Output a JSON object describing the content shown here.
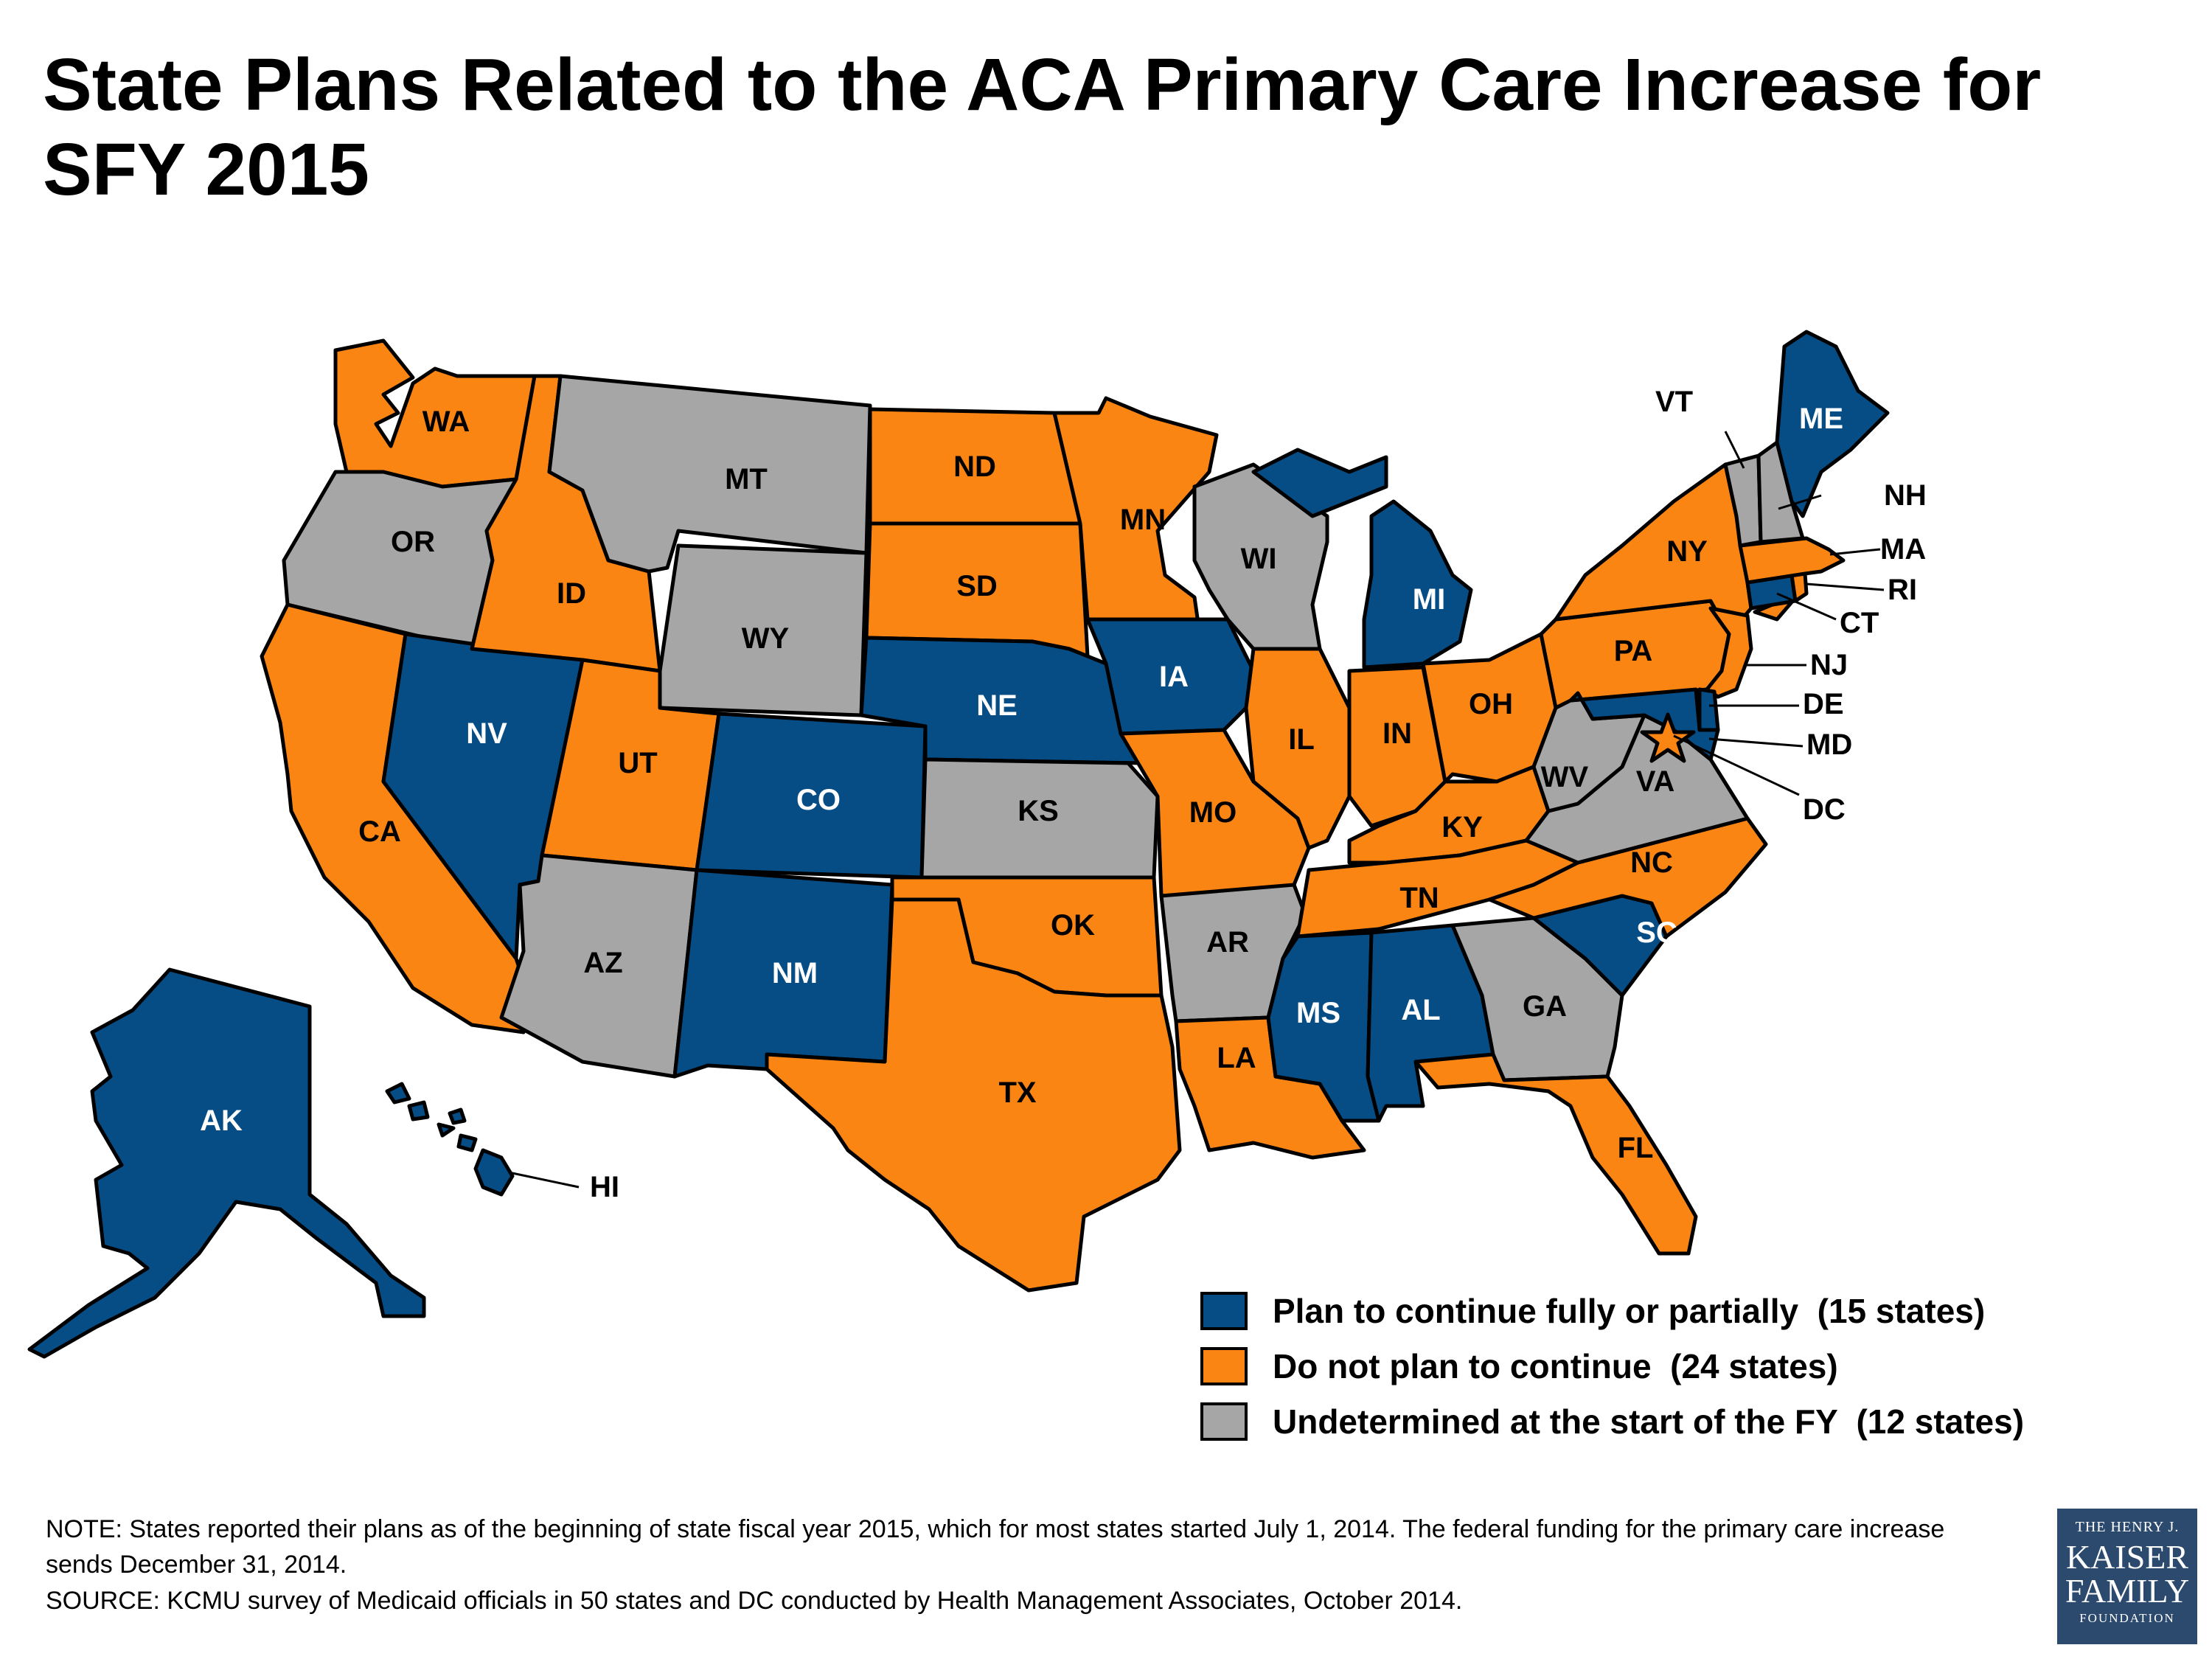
{
  "title": "State Plans Related to the ACA Primary Care Increase for SFY 2015",
  "colors": {
    "continue": "#064d86",
    "not_continue": "#fb8512",
    "undetermined": "#a6a6a6"
  },
  "categories": {
    "continue": "Plan to continue fully or partially  (15 states)",
    "not_continue": "Do not plan to continue  (24 states)",
    "undetermined": "Undetermined at the start of the FY  (12 states)"
  },
  "states": {
    "AL": "continue",
    "AK": "continue",
    "AZ": "undetermined",
    "AR": "undetermined",
    "CA": "not_continue",
    "CO": "continue",
    "CT": "continue",
    "DE": "continue",
    "DC": "not_continue",
    "FL": "not_continue",
    "GA": "undetermined",
    "HI": "continue",
    "ID": "not_continue",
    "IL": "not_continue",
    "IN": "not_continue",
    "IA": "continue",
    "KS": "undetermined",
    "KY": "not_continue",
    "LA": "not_continue",
    "ME": "continue",
    "MD": "continue",
    "MA": "not_continue",
    "MI": "continue",
    "MN": "not_continue",
    "MS": "continue",
    "MO": "not_continue",
    "MT": "undetermined",
    "NE": "continue",
    "NV": "continue",
    "NH": "undetermined",
    "NJ": "not_continue",
    "NM": "continue",
    "NY": "not_continue",
    "NC": "not_continue",
    "ND": "not_continue",
    "OH": "not_continue",
    "OK": "not_continue",
    "OR": "undetermined",
    "PA": "not_continue",
    "RI": "not_continue",
    "SC": "continue",
    "SD": "not_continue",
    "TN": "not_continue",
    "TX": "not_continue",
    "UT": "not_continue",
    "VT": "undetermined",
    "VA": "undetermined",
    "WA": "not_continue",
    "WV": "undetermined",
    "WI": "undetermined",
    "WY": "undetermined"
  },
  "note": "NOTE: States reported their plans as of the beginning of state fiscal year 2015, which for most states started July 1, 2014. The federal funding for the primary care increase sends December 31, 2014.",
  "source": "SOURCE: KCMU survey of Medicaid officials in 50 states and DC conducted by Health Management Associates, October 2014.",
  "logo": {
    "line1": "THE HENRY J.",
    "line2": "KAISER",
    "line3": "FAMILY",
    "line4": "FOUNDATION"
  }
}
